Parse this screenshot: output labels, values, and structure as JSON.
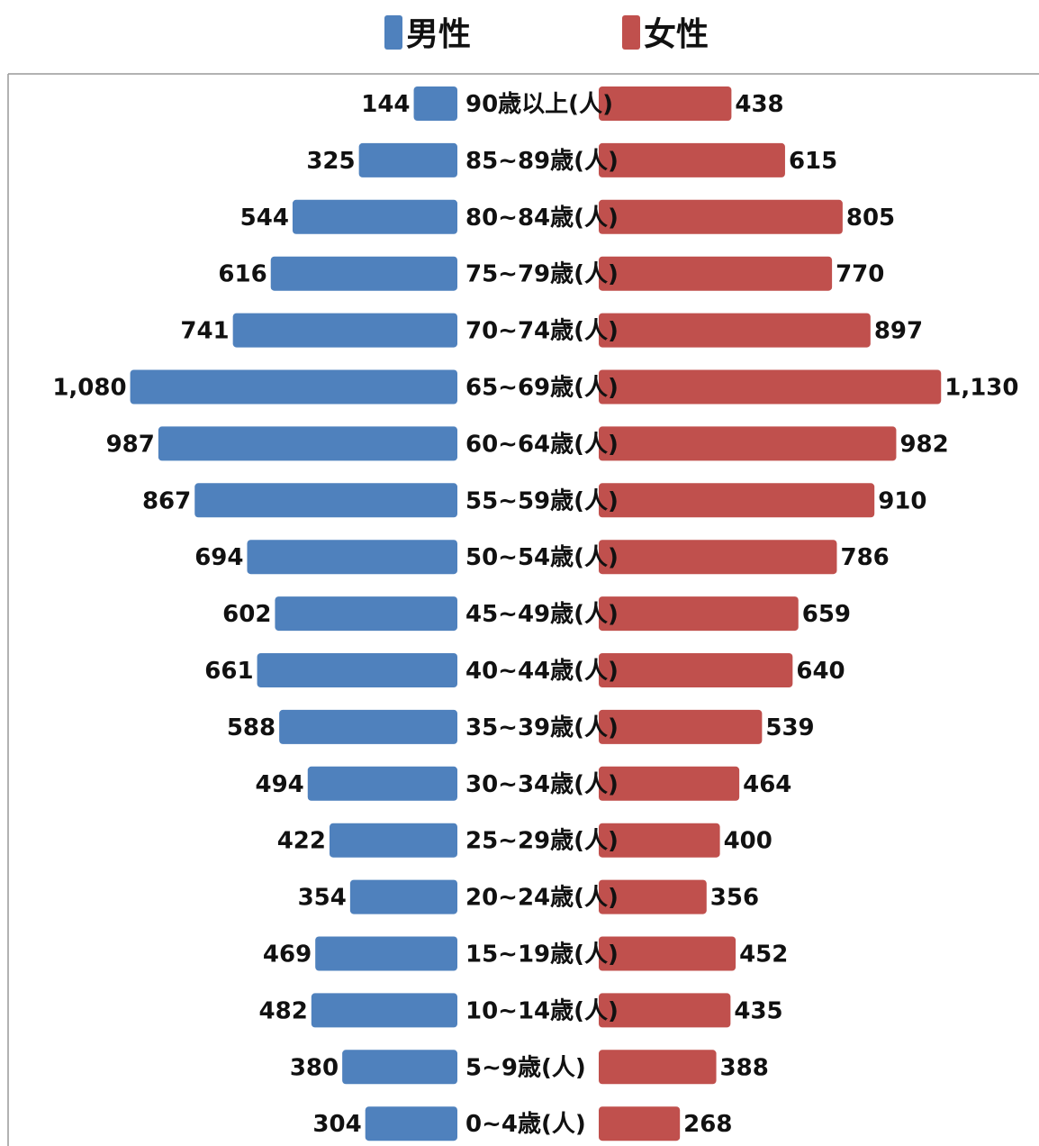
{
  "chart_data": {
    "type": "bar",
    "orientation": "horizontal",
    "layout": "population-pyramid",
    "legend_position": "top",
    "categories": [
      "90歳以上(人)",
      "85~89歳(人)",
      "80~84歳(人)",
      "75~79歳(人)",
      "70~74歳(人)",
      "65~69歳(人)",
      "60~64歳(人)",
      "55~59歳(人)",
      "50~54歳(人)",
      "45~49歳(人)",
      "40~44歳(人)",
      "35~39歳(人)",
      "30~34歳(人)",
      "25~29歳(人)",
      "20~24歳(人)",
      "15~19歳(人)",
      "10~14歳(人)",
      "5~9歳(人)",
      "0~4歳(人)"
    ],
    "series": [
      {
        "name": "男性",
        "color": "#4f81bd",
        "side": "left",
        "values": [
          144,
          325,
          544,
          616,
          741,
          1080,
          987,
          867,
          694,
          602,
          661,
          588,
          494,
          422,
          354,
          469,
          482,
          380,
          304
        ],
        "labels": [
          "144",
          "325",
          "544",
          "616",
          "741",
          "1,080",
          "987",
          "867",
          "694",
          "602",
          "661",
          "588",
          "494",
          "422",
          "354",
          "469",
          "482",
          "380",
          "304"
        ]
      },
      {
        "name": "女性",
        "color": "#c0504d",
        "side": "right",
        "values": [
          438,
          615,
          805,
          770,
          897,
          1130,
          982,
          910,
          786,
          659,
          640,
          539,
          464,
          400,
          356,
          452,
          435,
          388,
          268
        ],
        "labels": [
          "438",
          "615",
          "805",
          "770",
          "897",
          "1,130",
          "982",
          "910",
          "786",
          "659",
          "640",
          "539",
          "464",
          "400",
          "356",
          "452",
          "435",
          "388",
          "268"
        ]
      }
    ]
  }
}
